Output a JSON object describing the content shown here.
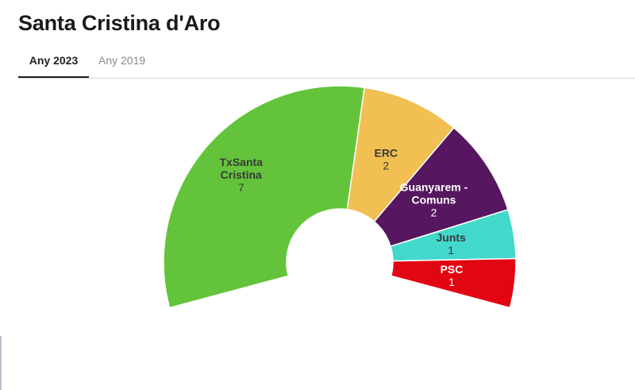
{
  "title": "Santa Cristina d'Aro",
  "tabs": [
    {
      "label": "Any 2023",
      "active": true
    },
    {
      "label": "Any 2019",
      "active": false
    }
  ],
  "chart_data": {
    "type": "pie",
    "subtype": "parliament-semicircle",
    "total_seats": 13,
    "series": [
      {
        "label_lines": [
          "TxSanta",
          "Cristina"
        ],
        "value": 7,
        "color": "#63c43b",
        "text_color": "#3a3a3a"
      },
      {
        "label_lines": [
          "ERC"
        ],
        "value": 2,
        "color": "#f2bf52",
        "text_color": "#3a3a3a"
      },
      {
        "label_lines": [
          "Guanyarem -",
          "Comuns"
        ],
        "value": 2,
        "color": "#561760",
        "text_color": "#ffffff"
      },
      {
        "label_lines": [
          "Junts"
        ],
        "value": 1,
        "color": "#42d8cc",
        "text_color": "#3a3a3a"
      },
      {
        "label_lines": [
          "PSC"
        ],
        "value": 1,
        "color": "#e20512",
        "text_color": "#ffffff"
      }
    ]
  }
}
